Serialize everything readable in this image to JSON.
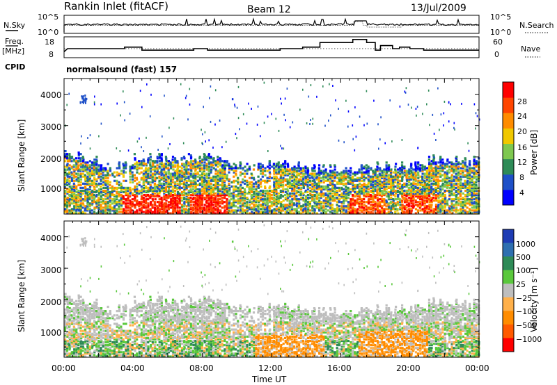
{
  "header": {
    "station": "Rankin Inlet (fitACF)",
    "beam": "Beam 12",
    "date": "13/Jul/2009"
  },
  "noise_panel": {
    "left_label": "N.Sky",
    "right_label": "N.Search",
    "left_ticks": [
      "10^5",
      "10^0"
    ],
    "right_ticks": [
      "10^5",
      "10^0"
    ]
  },
  "freq_panel": {
    "left_label": "Freq.",
    "left_unit": "[MHz]",
    "right_label": "Nave",
    "left_ticks": [
      "18",
      "8"
    ],
    "right_ticks": [
      "60",
      "0"
    ]
  },
  "cpid": {
    "label": "CPID",
    "value": "normalsound (fast) 157"
  },
  "power_panel": {
    "ylabel": "Slant Range [km]",
    "yticks": [
      "4000",
      "3000",
      "2000",
      "1000"
    ],
    "colorbar_label": "Power [dB]",
    "colorbar_ticks": [
      "28",
      "24",
      "20",
      "16",
      "12",
      "8",
      "4"
    ],
    "colors": [
      "#0000ff",
      "#1e50c8",
      "#2e8b57",
      "#7ec850",
      "#f0c800",
      "#ff8c00",
      "#ff4500",
      "#ff0000"
    ]
  },
  "velocity_panel": {
    "ylabel": "Slant Range [km]",
    "yticks": [
      "4000",
      "3000",
      "2000",
      "1000"
    ],
    "colorbar_label": "Velocity [m s⁻¹]",
    "colorbar_ticks": [
      "1000",
      "500",
      "100",
      "25",
      "−25",
      "−100",
      "−500",
      "−1000"
    ],
    "colors": [
      "#1e3cb4",
      "#2e6fb0",
      "#2e8b57",
      "#5ac83c",
      "#bebebe",
      "#ffb04a",
      "#ff8c00",
      "#ff5a00",
      "#ff0000"
    ]
  },
  "xaxis": {
    "ticks": [
      "00:00",
      "04:00",
      "08:00",
      "12:00",
      "16:00",
      "20:00",
      "00:00"
    ],
    "label": "Time UT"
  },
  "chart_data": {
    "type": "heatmap",
    "x_range_hours": [
      0,
      24
    ],
    "y_range_km": [
      180,
      4500
    ],
    "grid": false,
    "frequency_MHz": [
      [
        0,
        11
      ],
      [
        0.2,
        13
      ],
      [
        3.5,
        13
      ],
      [
        3.5,
        14
      ],
      [
        4.5,
        14
      ],
      [
        4.5,
        12
      ],
      [
        7.5,
        12
      ],
      [
        7.5,
        13
      ],
      [
        8.3,
        13
      ],
      [
        8.3,
        12
      ],
      [
        12.5,
        12
      ],
      [
        12.5,
        13
      ],
      [
        13.8,
        13
      ],
      [
        13.8,
        14
      ],
      [
        14.8,
        14
      ],
      [
        14.8,
        17
      ],
      [
        16.7,
        17
      ],
      [
        16.7,
        19
      ],
      [
        17.5,
        19
      ],
      [
        17.5,
        17
      ],
      [
        18,
        17
      ],
      [
        18,
        12
      ],
      [
        18.3,
        12
      ],
      [
        18.3,
        15
      ],
      [
        19,
        15
      ],
      [
        19,
        13
      ],
      [
        19.4,
        13
      ],
      [
        19.4,
        14
      ],
      [
        20,
        14
      ],
      [
        20,
        13
      ],
      [
        20.8,
        13
      ],
      [
        20.8,
        12
      ],
      [
        24,
        12
      ]
    ]
  }
}
